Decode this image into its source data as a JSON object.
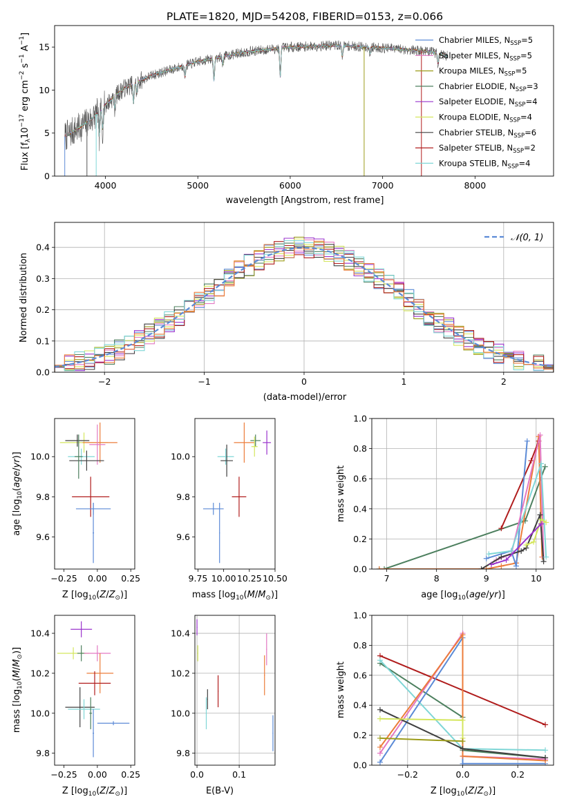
{
  "figure": {
    "title": "PLATE=1820, MJD=54208, FIBERID=0153, z=0.066"
  },
  "chart_data": [
    {
      "id": "spectrum",
      "type": "line",
      "xlabel": "wavelength [Angstrom, rest frame]",
      "ylabel": "Flux [f_λ 10^-17 erg cm^-2 s^-1 A^-1]",
      "xlim": [
        3450,
        8850
      ],
      "ylim": [
        0,
        17.5
      ],
      "xticks": [
        4000,
        5000,
        6000,
        7000,
        8000
      ],
      "yticks": [
        0,
        5,
        10,
        15
      ],
      "grid": false,
      "legend_position": "top-right",
      "legend": [
        {
          "text": "Chabrier MILES, N",
          "sub": "SSP",
          "val": "=5",
          "color": "#5b8ad6"
        },
        {
          "text": "Salpeter MILES, N",
          "sub": "SSP",
          "val": "=5",
          "color": "#e377c2"
        },
        {
          "text": "Kroupa MILES, N",
          "sub": "SSP",
          "val": "=5",
          "color": "#9c9c1a"
        },
        {
          "text": "Chabrier ELODIE, N",
          "sub": "SSP",
          "val": "=3",
          "color": "#4c7f5e"
        },
        {
          "text": "Salpeter ELODIE, N",
          "sub": "SSP",
          "val": "=4",
          "color": "#9932cc"
        },
        {
          "text": "Kroupa ELODIE, N",
          "sub": "SSP",
          "val": "=4",
          "color": "#d4e65c"
        },
        {
          "text": "Chabrier STELIB, N",
          "sub": "SSP",
          "val": "=6",
          "color": "#3f3f3f"
        },
        {
          "text": "Salpeter STELIB, N",
          "sub": "SSP",
          "val": "=2",
          "color": "#b01c1c"
        },
        {
          "text": "Kroupa STELIB, N",
          "sub": "SSP",
          "val": "=4",
          "color": "#7fd6d6"
        }
      ],
      "continuum": [
        [
          3560,
          4.6
        ],
        [
          3700,
          5.5
        ],
        [
          3850,
          6.6
        ],
        [
          4000,
          8.3
        ],
        [
          4200,
          10.2
        ],
        [
          4500,
          11.7
        ],
        [
          5000,
          13.3
        ],
        [
          5500,
          14.4
        ],
        [
          6000,
          15.0
        ],
        [
          6500,
          15.2
        ],
        [
          7000,
          14.9
        ],
        [
          7500,
          14.5
        ],
        [
          7700,
          14.0
        ]
      ],
      "dips": [
        [
          3934,
          -3.0
        ],
        [
          3969,
          -2.5
        ],
        [
          4102,
          -1.4
        ],
        [
          4304,
          -2.2
        ],
        [
          4340,
          -1.3
        ],
        [
          4861,
          -1.3
        ],
        [
          5175,
          -2.6
        ],
        [
          5270,
          -0.9
        ],
        [
          5892,
          -3.4
        ],
        [
          6563,
          -1.3
        ],
        [
          6865,
          -0.8
        ],
        [
          7600,
          -1.2
        ]
      ]
    },
    {
      "id": "residuals",
      "type": "histogram",
      "xlabel": "(data-model)/error",
      "ylabel": "Normed distribution",
      "xlim": [
        -2.5,
        2.5
      ],
      "ylim": [
        0,
        0.48
      ],
      "xticks": [
        -2,
        -1,
        0,
        1,
        2
      ],
      "yticks": [
        0.0,
        0.1,
        0.2,
        0.3,
        0.4
      ],
      "grid": true,
      "legend": "N(0,1)",
      "bin_width": 0.1,
      "series_colors": [
        "#5b8ad6",
        "#e377c2",
        "#9c9c1a",
        "#4c7f5e",
        "#9932cc",
        "#d4e65c",
        "#3f3f3f",
        "#b01c1c",
        "#7fd6d6",
        "#ec7c3a"
      ]
    },
    {
      "id": "age-vs-Z",
      "type": "errorbar",
      "xlabel": "Z [log10(Z/Z⊙)]",
      "ylabel": "age [log10(age/yr)]",
      "xlim": [
        -0.32,
        0.28
      ],
      "ylim": [
        9.44,
        10.19
      ],
      "xticks": [
        -0.25,
        0.0,
        0.25
      ],
      "xticklabels": [
        "−0.25",
        "0.00",
        "0.25"
      ],
      "yticks": [
        9.6,
        9.8,
        10.0
      ],
      "points": [
        {
          "x": -0.1,
          "xerr": 0.18,
          "y": 10.07,
          "yerr": 0.05,
          "color": "#d4e65c"
        },
        {
          "x": 0.02,
          "xerr": 0.13,
          "y": 10.07,
          "yerr": 0.1,
          "color": "#ec7c3a"
        },
        {
          "x": -0.15,
          "xerr": 0.09,
          "y": 10.08,
          "yerr": 0.03,
          "color": "#3f3f3f"
        },
        {
          "x": 0.0,
          "xerr": 0.06,
          "y": 10.06,
          "yerr": 0.1,
          "color": "#e377c2"
        },
        {
          "x": -0.12,
          "xerr": 0.1,
          "y": 10.0,
          "yerr": 0.04,
          "color": "#7fd6d6"
        },
        {
          "x": -0.08,
          "xerr": 0.13,
          "y": 9.98,
          "yerr": 0.05,
          "color": "#3f3f3f"
        },
        {
          "x": -0.14,
          "xerr": 0.03,
          "y": 10.0,
          "yerr": 0.11,
          "color": "#4c7f5e"
        },
        {
          "x": -0.05,
          "xerr": 0.14,
          "y": 9.8,
          "yerr": 0.1,
          "color": "#b01c1c"
        },
        {
          "x": -0.03,
          "xerr": 0.13,
          "y": 9.74,
          "yerr": 0.03,
          "color": "#5b8ad6"
        },
        {
          "x": -0.03,
          "xerr": 0.005,
          "y": 9.62,
          "yerr": 0.15,
          "color": "#5b8ad6"
        }
      ]
    },
    {
      "id": "age-vs-mass",
      "type": "errorbar",
      "xlabel": "mass [log10(M/M⊙)]",
      "ylabel": "",
      "xlim": [
        9.72,
        10.5
      ],
      "ylim": [
        9.44,
        10.19
      ],
      "xticks": [
        9.75,
        10.0,
        10.25,
        10.5
      ],
      "xticklabels": [
        "9.75",
        "10.00",
        "10.25",
        "10.50"
      ],
      "yticks": [
        9.6,
        9.8,
        10.0
      ],
      "points": [
        {
          "x": 10.2,
          "xerr": 0.1,
          "y": 10.07,
          "yerr": 0.1,
          "color": "#ec7c3a"
        },
        {
          "x": 10.31,
          "xerr": 0.05,
          "y": 10.08,
          "yerr": 0.03,
          "color": "#4c7f5e"
        },
        {
          "x": 10.3,
          "xerr": 0.03,
          "y": 10.05,
          "yerr": 0.05,
          "color": "#d4e65c"
        },
        {
          "x": 10.42,
          "xerr": 0.04,
          "y": 10.07,
          "yerr": 0.06,
          "color": "#9932cc"
        },
        {
          "x": 10.02,
          "xerr": 0.08,
          "y": 10.0,
          "yerr": 0.04,
          "color": "#7fd6d6"
        },
        {
          "x": 10.03,
          "xerr": 0.06,
          "y": 9.98,
          "yerr": 0.08,
          "color": "#3f3f3f"
        },
        {
          "x": 10.15,
          "xerr": 0.07,
          "y": 9.8,
          "yerr": 0.1,
          "color": "#b01c1c"
        },
        {
          "x": 9.9,
          "xerr": 0.1,
          "y": 9.74,
          "yerr": 0.03,
          "color": "#5b8ad6"
        },
        {
          "x": 9.96,
          "xerr": 0.004,
          "y": 9.62,
          "yerr": 0.15,
          "color": "#5b8ad6"
        }
      ]
    },
    {
      "id": "weight-vs-age",
      "type": "line",
      "xlabel": "age [log10(age/yr)]",
      "ylabel": "mass weight",
      "xlim": [
        6.7,
        10.35
      ],
      "ylim": [
        0,
        1.0
      ],
      "xticks": [
        7,
        8,
        9,
        10
      ],
      "yticks": [
        0.0,
        0.2,
        0.4,
        0.6,
        0.8,
        1.0
      ],
      "grid": true,
      "series": [
        {
          "color": "#4c7f5e",
          "points": [
            [
              6.85,
              0.0
            ],
            [
              6.95,
              0.0
            ],
            [
              9.78,
              0.32
            ],
            [
              10.18,
              0.68
            ]
          ]
        },
        {
          "color": "#ec7c3a",
          "points": [
            [
              6.85,
              0.0
            ],
            [
              9.0,
              0.0
            ],
            [
              9.3,
              0.02
            ],
            [
              9.6,
              0.04
            ],
            [
              10.05,
              0.88
            ],
            [
              10.12,
              0.08
            ]
          ]
        },
        {
          "color": "#b01c1c",
          "points": [
            [
              9.3,
              0.27
            ],
            [
              9.9,
              0.72
            ],
            [
              10.05,
              0.85
            ]
          ]
        },
        {
          "color": "#5b8ad6",
          "points": [
            [
              9.0,
              0.07
            ],
            [
              9.5,
              0.12
            ],
            [
              9.6,
              0.02
            ],
            [
              9.82,
              0.85
            ]
          ]
        },
        {
          "color": "#e377c2",
          "points": [
            [
              9.2,
              0.06
            ],
            [
              9.5,
              0.1
            ],
            [
              10.08,
              0.89
            ],
            [
              10.15,
              0.08
            ]
          ]
        },
        {
          "color": "#3f3f3f",
          "points": [
            [
              8.9,
              0.0
            ],
            [
              9.3,
              0.08
            ],
            [
              9.7,
              0.12
            ],
            [
              9.8,
              0.14
            ],
            [
              10.08,
              0.36
            ],
            [
              10.15,
              0.05
            ]
          ]
        },
        {
          "color": "#7fd6d6",
          "points": [
            [
              9.05,
              0.1
            ],
            [
              9.5,
              0.12
            ],
            [
              10.1,
              0.7
            ],
            [
              10.2,
              0.08
            ]
          ]
        },
        {
          "color": "#d4e65c",
          "points": [
            [
              9.8,
              0.16
            ],
            [
              9.95,
              0.18
            ],
            [
              10.1,
              0.33
            ],
            [
              10.2,
              0.31
            ]
          ]
        },
        {
          "color": "#9932cc",
          "points": [
            [
              9.1,
              0.03
            ],
            [
              9.4,
              0.06
            ],
            [
              10.1,
              0.3
            ]
          ]
        }
      ]
    },
    {
      "id": "mass-vs-Z",
      "type": "errorbar",
      "xlabel": "Z [log10(Z/Z⊙)]",
      "ylabel": "mass [log10(M/M⊙)]",
      "xlim": [
        -0.32,
        0.28
      ],
      "ylim": [
        9.74,
        10.49
      ],
      "xticks": [
        -0.25,
        0.0,
        0.25
      ],
      "xticklabels": [
        "−0.25",
        "0.00",
        "0.25"
      ],
      "yticks": [
        9.8,
        10.0,
        10.2,
        10.4
      ],
      "points": [
        {
          "x": -0.12,
          "xerr": 0.08,
          "y": 10.42,
          "yerr": 0.04,
          "color": "#9932cc"
        },
        {
          "x": -0.18,
          "xerr": 0.12,
          "y": 10.3,
          "yerr": 0.03,
          "color": "#d4e65c"
        },
        {
          "x": -0.12,
          "xerr": 0.03,
          "y": 10.3,
          "yerr": 0.04,
          "color": "#4c7f5e"
        },
        {
          "x": 0.0,
          "xerr": 0.1,
          "y": 10.3,
          "yerr": 0.04,
          "color": "#e377c2"
        },
        {
          "x": 0.02,
          "xerr": 0.1,
          "y": 10.2,
          "yerr": 0.1,
          "color": "#ec7c3a"
        },
        {
          "x": -0.02,
          "xerr": 0.12,
          "y": 10.15,
          "yerr": 0.06,
          "color": "#b01c1c"
        },
        {
          "x": -0.13,
          "xerr": 0.11,
          "y": 10.03,
          "yerr": 0.1,
          "color": "#3f3f3f"
        },
        {
          "x": -0.1,
          "xerr": 0.12,
          "y": 10.02,
          "yerr": 0.05,
          "color": "#7fd6d6"
        },
        {
          "x": -0.05,
          "xerr": 0.01,
          "y": 10.0,
          "yerr": 0.08,
          "color": "#4c7f5e"
        },
        {
          "x": 0.12,
          "xerr": 0.12,
          "y": 9.95,
          "yerr": 0.01,
          "color": "#5b8ad6"
        },
        {
          "x": -0.03,
          "xerr": 0.005,
          "y": 9.9,
          "yerr": 0.12,
          "color": "#5b8ad6"
        }
      ]
    },
    {
      "id": "mass-vs-EBV",
      "type": "errorbar",
      "xlabel": "E(B-V)",
      "ylabel": "",
      "xlim": [
        -0.005,
        0.185
      ],
      "ylim": [
        9.74,
        10.49
      ],
      "xticks": [
        0.0,
        0.1
      ],
      "xticklabels": [
        "0.0",
        "0.1"
      ],
      "yticks": [
        9.8,
        10.0,
        10.2,
        10.4
      ],
      "points": [
        {
          "x": 0.0,
          "xerr": 0.001,
          "y": 10.43,
          "yerr": 0.04,
          "color": "#9932cc"
        },
        {
          "x": 0.002,
          "xerr": 0.001,
          "y": 10.3,
          "yerr": 0.04,
          "color": "#d4e65c"
        },
        {
          "x": 0.165,
          "xerr": 0.001,
          "y": 10.32,
          "yerr": 0.08,
          "color": "#e377c2"
        },
        {
          "x": 0.16,
          "xerr": 0.001,
          "y": 10.19,
          "yerr": 0.1,
          "color": "#ec7c3a"
        },
        {
          "x": 0.05,
          "xerr": 0.001,
          "y": 10.11,
          "yerr": 0.08,
          "color": "#b01c1c"
        },
        {
          "x": 0.025,
          "xerr": 0.001,
          "y": 10.07,
          "yerr": 0.05,
          "color": "#3f3f3f"
        },
        {
          "x": 0.022,
          "xerr": 0.001,
          "y": 10.0,
          "yerr": 0.08,
          "color": "#7fd6d6"
        },
        {
          "x": 0.18,
          "xerr": 0.001,
          "y": 9.9,
          "yerr": 0.09,
          "color": "#5b8ad6"
        }
      ]
    },
    {
      "id": "weight-vs-Z",
      "type": "line",
      "xlabel": "Z [log10(Z/Z⊙)]",
      "ylabel": "mass weight",
      "xlim": [
        -0.33,
        0.33
      ],
      "ylim": [
        0,
        1.0
      ],
      "xticks": [
        -0.2,
        0.0,
        0.2
      ],
      "xticklabels": [
        "−0.2",
        "0.0",
        "0.2"
      ],
      "yticks": [
        0.0,
        0.2,
        0.4,
        0.6,
        0.8,
        1.0
      ],
      "grid": true,
      "series": [
        {
          "color": "#b01c1c",
          "points": [
            [
              -0.3,
              0.73
            ],
            [
              0.3,
              0.27
            ]
          ]
        },
        {
          "color": "#4c7f5e",
          "points": [
            [
              -0.3,
              0.68
            ],
            [
              0.0,
              0.32
            ],
            [
              0.0,
              0.1
            ],
            [
              0.3,
              0.05
            ]
          ]
        },
        {
          "color": "#7fd6d6",
          "points": [
            [
              -0.3,
              0.7
            ],
            [
              0.0,
              0.11
            ],
            [
              0.3,
              0.1
            ]
          ]
        },
        {
          "color": "#5b8ad6",
          "points": [
            [
              -0.3,
              0.02
            ],
            [
              0.0,
              0.85
            ],
            [
              0.0,
              0.01
            ],
            [
              0.3,
              0.01
            ]
          ]
        },
        {
          "color": "#e377c2",
          "points": [
            [
              -0.3,
              0.08
            ],
            [
              0.0,
              0.88
            ],
            [
              0.0,
              0.06
            ],
            [
              0.3,
              0.04
            ]
          ]
        },
        {
          "color": "#ec7c3a",
          "points": [
            [
              -0.3,
              0.12
            ],
            [
              0.0,
              0.87
            ],
            [
              0.0,
              0.06
            ],
            [
              0.3,
              0.03
            ]
          ]
        },
        {
          "color": "#3f3f3f",
          "points": [
            [
              -0.3,
              0.37
            ],
            [
              0.0,
              0.11
            ],
            [
              0.3,
              0.05
            ]
          ]
        },
        {
          "color": "#d4e65c",
          "points": [
            [
              -0.3,
              0.31
            ],
            [
              0.0,
              0.3
            ],
            [
              0.0,
              0.18
            ]
          ]
        },
        {
          "color": "#9c9c1a",
          "points": [
            [
              -0.3,
              0.18
            ],
            [
              0.0,
              0.16
            ]
          ]
        }
      ]
    }
  ]
}
